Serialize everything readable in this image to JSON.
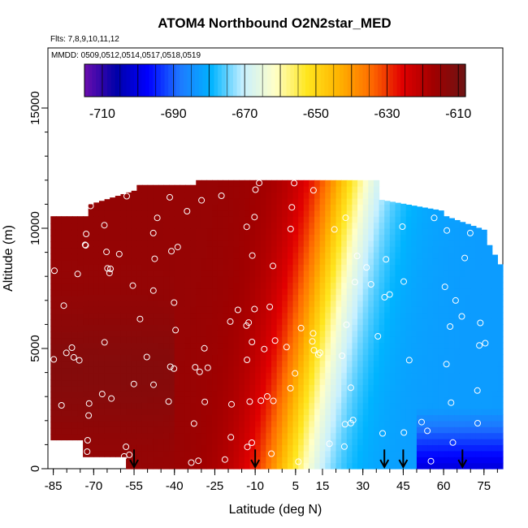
{
  "chart_data": {
    "type": "heatmap",
    "title": "ATOM4 Northbound O2N2star_MED",
    "subtitle_flights": "Flts: 7,8,9,10,11,12",
    "subtitle_dates": "MMDD: 0509,0512,0514,0517,0518,0519",
    "xlabel": "Latitude (deg N)",
    "ylabel": "Altitude (m)",
    "xlim": [
      -87,
      82
    ],
    "ylim": [
      0,
      17500
    ],
    "x_ticks": [
      "-85",
      "-70",
      "-55",
      "-40",
      "-25",
      "-10",
      "5",
      "15",
      "30",
      "45",
      "60",
      "75"
    ],
    "y_ticks": [
      "0",
      "5000",
      "10000",
      "15000"
    ],
    "colorbar": {
      "min": -715,
      "max": -608,
      "ticks": [
        "-710",
        "-690",
        "-670",
        "-650",
        "-630",
        "-610"
      ],
      "colors": [
        "#6a0dad",
        "#0000a8",
        "#0000ff",
        "#1e78ff",
        "#00b4ff",
        "#c8f0ff",
        "#ffffc8",
        "#ffe61e",
        "#ffb400",
        "#ff6e00",
        "#e10000",
        "#a00000",
        "#6e1414"
      ]
    },
    "surface_regions": [
      {
        "lat_range": [
          -87,
          -10
        ],
        "alt_range": [
          0,
          11000
        ],
        "value": -615
      },
      {
        "lat_range": [
          -10,
          10
        ],
        "alt_range": [
          0,
          12000
        ],
        "value": -645
      },
      {
        "lat_range": [
          10,
          82
        ],
        "alt_range": [
          0,
          9000
        ],
        "value": -680
      }
    ],
    "arrows_latitude": [
      -55,
      -10,
      38,
      45,
      67
    ],
    "sample_count_note": "Sample points drawn as open circles"
  }
}
